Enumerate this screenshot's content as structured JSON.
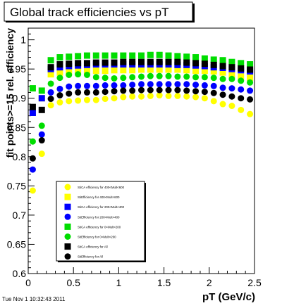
{
  "footer": {
    "timestamp": "Tue Nov  1 10:32:43 2011"
  },
  "chart_data": {
    "type": "scatter",
    "title": "Global track efficiencies vs pT",
    "xlabel": "pT (GeV/c)",
    "ylabel": "fit points>=15 rel. efficiency",
    "xlim": [
      0,
      2.5
    ],
    "ylim": [
      0.6,
      1.02
    ],
    "x_ticks": [
      "0",
      "0.5",
      "1",
      "1.5",
      "2",
      "2.5"
    ],
    "y_ticks": [
      "0.6",
      "0.65",
      "0.7",
      "0.75",
      "0.8",
      "0.85",
      "0.9",
      "0.95",
      "1"
    ],
    "x": [
      0.05,
      0.15,
      0.25,
      0.35,
      0.45,
      0.55,
      0.65,
      0.75,
      0.85,
      0.95,
      1.05,
      1.15,
      1.25,
      1.35,
      1.45,
      1.55,
      1.65,
      1.75,
      1.85,
      1.95,
      2.05,
      2.15,
      2.25,
      2.35,
      2.45
    ],
    "legend_position": "bottom-left",
    "grid": false,
    "series": [
      {
        "name": "StiCA efficiency  for 400<Mult<600",
        "color": "#ffff00",
        "marker": "circle",
        "values": [
          0.742,
          0.805,
          0.888,
          0.893,
          0.895,
          0.896,
          0.897,
          0.897,
          0.899,
          0.9,
          0.902,
          0.903,
          0.903,
          0.904,
          0.905,
          0.904,
          0.904,
          0.903,
          0.902,
          0.9,
          0.895,
          0.89,
          0.887,
          0.88,
          0.873
        ]
      },
      {
        "name": "StiEfficiency  for 400<Mult<600",
        "color": "#ffff00",
        "marker": "square",
        "values": [
          0.875,
          0.9,
          0.941,
          0.944,
          0.945,
          0.946,
          0.946,
          0.947,
          0.947,
          0.948,
          0.948,
          0.948,
          0.949,
          0.949,
          0.949,
          0.949,
          0.949,
          0.948,
          0.947,
          0.947,
          0.946,
          0.944,
          0.94,
          0.937,
          0.935
        ]
      },
      {
        "name": "StiCA efficiency  for 200<Mult<400",
        "color": "#0000ff",
        "marker": "square",
        "values": [
          0.875,
          0.9,
          0.95,
          0.953,
          0.955,
          0.956,
          0.957,
          0.958,
          0.958,
          0.958,
          0.958,
          0.958,
          0.958,
          0.958,
          0.958,
          0.958,
          0.957,
          0.957,
          0.956,
          0.955,
          0.953,
          0.952,
          0.95,
          0.948,
          0.946
        ]
      },
      {
        "name": "StiEfficiency  for 200<Mult<400",
        "color": "#0000ff",
        "marker": "circle",
        "values": [
          0.778,
          0.838,
          0.91,
          0.916,
          0.92,
          0.921,
          0.921,
          0.921,
          0.922,
          0.922,
          0.922,
          0.923,
          0.924,
          0.924,
          0.924,
          0.924,
          0.924,
          0.924,
          0.923,
          0.922,
          0.921,
          0.918,
          0.917,
          0.915,
          0.913
        ]
      },
      {
        "name": "StiCA efficiency  for 0<Mult<200",
        "color": "#00dd00",
        "marker": "square",
        "values": [
          0.917,
          0.913,
          0.965,
          0.97,
          0.971,
          0.972,
          0.973,
          0.973,
          0.973,
          0.973,
          0.973,
          0.973,
          0.973,
          0.974,
          0.974,
          0.973,
          0.972,
          0.971,
          0.97,
          0.968,
          0.966,
          0.965,
          0.962,
          0.96,
          0.958
        ]
      },
      {
        "name": "StiEfficiency  for 0<Mult<200",
        "color": "#00dd00",
        "marker": "circle",
        "values": [
          0.826,
          0.853,
          0.925,
          0.935,
          0.94,
          0.941,
          0.94,
          0.936,
          0.935,
          0.934,
          0.935,
          0.936,
          0.937,
          0.938,
          0.938,
          0.938,
          0.937,
          0.937,
          0.936,
          0.936,
          0.935,
          0.933,
          0.933,
          0.93,
          0.927
        ]
      },
      {
        "name": "StiCA efficiency  for All",
        "color": "#000000",
        "marker": "square",
        "values": [
          0.885,
          0.88,
          0.953,
          0.958,
          0.959,
          0.96,
          0.96,
          0.961,
          0.961,
          0.961,
          0.962,
          0.962,
          0.962,
          0.962,
          0.962,
          0.962,
          0.962,
          0.961,
          0.96,
          0.959,
          0.957,
          0.955,
          0.953,
          0.951,
          0.949
        ]
      },
      {
        "name": "StiEfficiency  for All",
        "color": "#000000",
        "marker": "circle",
        "values": [
          0.797,
          0.828,
          0.899,
          0.905,
          0.908,
          0.91,
          0.91,
          0.91,
          0.911,
          0.912,
          0.913,
          0.913,
          0.914,
          0.914,
          0.914,
          0.914,
          0.914,
          0.913,
          0.912,
          0.911,
          0.909,
          0.906,
          0.903,
          0.9,
          0.898
        ]
      }
    ]
  }
}
